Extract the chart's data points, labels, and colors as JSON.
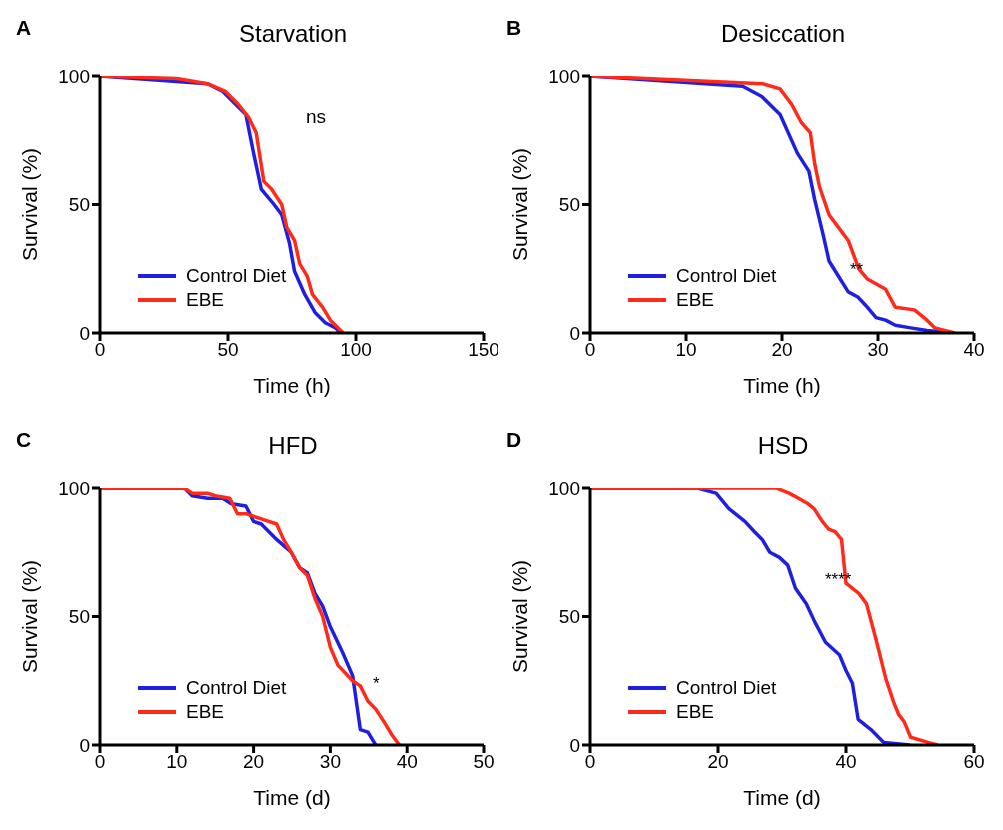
{
  "chart_data": [
    {
      "type": "line",
      "title": "Starvation",
      "xlabel": "Time (h)",
      "ylabel": "Survival (%)",
      "xlim": [
        0,
        150
      ],
      "xticks": [
        0,
        50,
        100,
        150
      ],
      "ylim": [
        0,
        100
      ],
      "yticks": [
        0,
        50,
        100
      ],
      "grid": false,
      "legend": "bottom left",
      "marker": "none",
      "line_style": "solid",
      "annotations": [
        "A",
        "ns"
      ],
      "series": [
        {
          "name": "Control Diet",
          "color": "#1f1fe0",
          "x": [
            0,
            42,
            48,
            52,
            57,
            60,
            63,
            68,
            71,
            74,
            76,
            80,
            84,
            88,
            92,
            94
          ],
          "values": [
            100,
            97,
            94,
            90,
            85,
            70,
            56,
            50,
            46,
            35,
            24,
            15,
            8,
            4,
            2,
            0
          ]
        },
        {
          "name": "EBE",
          "color": "#ff2a1a",
          "x": [
            0,
            30,
            42,
            49,
            54,
            58,
            61,
            64,
            67,
            71,
            73,
            76,
            78,
            81,
            83,
            87,
            90,
            95
          ],
          "values": [
            100,
            99,
            97,
            94,
            89,
            84,
            78,
            59,
            56,
            50,
            41,
            36,
            27,
            22,
            15,
            10,
            5,
            0
          ]
        }
      ]
    },
    {
      "type": "line",
      "title": "Desiccation",
      "xlabel": "Time (h)",
      "ylabel": "Survival (%)",
      "xlim": [
        0,
        40
      ],
      "xticks": [
        0,
        10,
        20,
        30,
        40
      ],
      "ylim": [
        0,
        100
      ],
      "yticks": [
        0,
        50,
        100
      ],
      "grid": false,
      "legend": "bottom left",
      "marker": "none",
      "line_style": "solid",
      "annotations": [
        "B",
        "**"
      ],
      "series": [
        {
          "name": "Control Diet",
          "color": "#1f1fe0",
          "x": [
            0,
            15.9,
            17.9,
            19.8,
            21.6,
            22.8,
            23.4,
            24.3,
            24.9,
            25.9,
            26.9,
            27.9,
            28.9,
            29.8,
            30.8,
            31.8,
            33.4,
            35.1,
            38
          ],
          "values": [
            100,
            96,
            92,
            85,
            70,
            63,
            52,
            38,
            28,
            22,
            16,
            14,
            10,
            6,
            5,
            3,
            2,
            1,
            0
          ]
        },
        {
          "name": "EBE",
          "color": "#ff2a1a",
          "x": [
            0,
            18,
            19.8,
            21,
            22,
            22.95,
            23.4,
            23.9,
            24.9,
            25.9,
            26.9,
            28,
            28.9,
            30.8,
            31.8,
            33.8,
            35.1,
            35.9,
            38
          ],
          "values": [
            100,
            97,
            95,
            89,
            82,
            78,
            66,
            57,
            46,
            41,
            36,
            25,
            21,
            17,
            10,
            9,
            5,
            2,
            0
          ]
        }
      ]
    },
    {
      "type": "line",
      "title": "HFD",
      "xlabel": "Time (d)",
      "ylabel": "Survival (%)",
      "xlim": [
        0,
        50
      ],
      "xticks": [
        0,
        10,
        20,
        30,
        40,
        50
      ],
      "ylim": [
        0,
        100
      ],
      "yticks": [
        0,
        50,
        100
      ],
      "grid": false,
      "legend": "bottom left",
      "marker": "none",
      "line_style": "solid",
      "annotations": [
        "C",
        "*"
      ],
      "series": [
        {
          "name": "Control Diet",
          "color": "#1f1fe0",
          "x": [
            0,
            11,
            12,
            14,
            16,
            17,
            19,
            20,
            21,
            23,
            24.9,
            26,
            27,
            28,
            29,
            30,
            31.6,
            32.9,
            33.9,
            34.9,
            35.9
          ],
          "values": [
            100,
            100,
            97,
            96,
            96,
            94,
            93,
            87,
            86,
            80,
            75,
            69,
            67,
            59,
            54,
            46,
            36,
            27,
            6,
            5,
            0
          ]
        },
        {
          "name": "EBE",
          "color": "#ff2a1a",
          "x": [
            0,
            11,
            12,
            14,
            15,
            16.9,
            17.9,
            19,
            21,
            23,
            23.9,
            24.9,
            26,
            27,
            28,
            29,
            30,
            31,
            32.9,
            33.9,
            34.9,
            35.9,
            37,
            38,
            39
          ],
          "values": [
            100,
            100,
            98,
            98,
            97,
            96,
            90,
            90,
            88,
            86,
            80,
            75,
            69,
            66,
            57,
            50,
            38,
            31,
            25,
            23,
            17,
            14,
            9,
            4,
            0
          ]
        }
      ]
    },
    {
      "type": "line",
      "title": "HSD",
      "xlabel": "Time (d)",
      "ylabel": "Survival (%)",
      "xlim": [
        0,
        60
      ],
      "xticks": [
        0,
        20,
        40,
        60
      ],
      "ylim": [
        0,
        100
      ],
      "yticks": [
        0,
        50,
        100
      ],
      "grid": false,
      "legend": "bottom left",
      "marker": "none",
      "line_style": "solid",
      "annotations": [
        "D",
        "****"
      ],
      "series": [
        {
          "name": "Control Diet",
          "color": "#1f1fe0",
          "x": [
            0,
            16.8,
            19.7,
            21.7,
            24.2,
            25.7,
            26.9,
            28.1,
            29.6,
            30.9,
            32.1,
            33.8,
            35.1,
            36.8,
            39,
            40,
            41,
            41.9,
            43.9,
            45.9,
            50
          ],
          "values": [
            100,
            100,
            98,
            92,
            87,
            83,
            80,
            75,
            73,
            70,
            61,
            55,
            48,
            40,
            35,
            29,
            24,
            10,
            6,
            1,
            0
          ]
        },
        {
          "name": "EBE",
          "color": "#ff2a1a",
          "x": [
            0,
            29.1,
            31.1,
            32.6,
            34,
            35,
            36.3,
            37.3,
            38.3,
            39.3,
            40,
            42,
            43.2,
            44.7,
            46.2,
            47.4,
            48.2,
            49.1,
            50.1,
            52.8,
            54.3
          ],
          "values": [
            100,
            100,
            98,
            96,
            94,
            92,
            87,
            84,
            83,
            80,
            63,
            59,
            55,
            41,
            26,
            17,
            12,
            9,
            3,
            1,
            0
          ]
        }
      ]
    }
  ]
}
